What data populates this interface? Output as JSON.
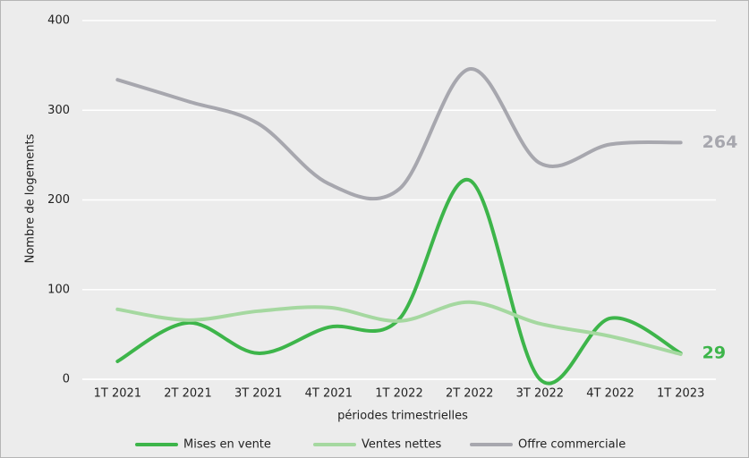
{
  "chart_data": {
    "type": "line",
    "x_label": "périodes trimestrielles",
    "y_label": "Nombre de logements",
    "categories": [
      "1T 2021",
      "2T 2021",
      "3T 2021",
      "4T 2021",
      "1T 2022",
      "2T 2022",
      "3T 2022",
      "4T 2022",
      "1T 2023"
    ],
    "series": [
      {
        "name": "Mises en vente",
        "color": "#3db54a",
        "values": [
          20,
          63,
          29,
          58,
          67,
          222,
          0,
          68,
          29
        ]
      },
      {
        "name": "Ventes nettes",
        "color": "#a5d8a0",
        "values": [
          78,
          66,
          76,
          80,
          65,
          86,
          62,
          48,
          28
        ]
      },
      {
        "name": "Offre commerciale",
        "color": "#a7a7ae",
        "values": [
          334,
          310,
          285,
          218,
          212,
          346,
          241,
          262,
          264
        ]
      }
    ],
    "ylim": [
      0,
      400
    ],
    "yticks": [
      0,
      100,
      200,
      300,
      400
    ],
    "grid": true,
    "legend": "bottom"
  }
}
